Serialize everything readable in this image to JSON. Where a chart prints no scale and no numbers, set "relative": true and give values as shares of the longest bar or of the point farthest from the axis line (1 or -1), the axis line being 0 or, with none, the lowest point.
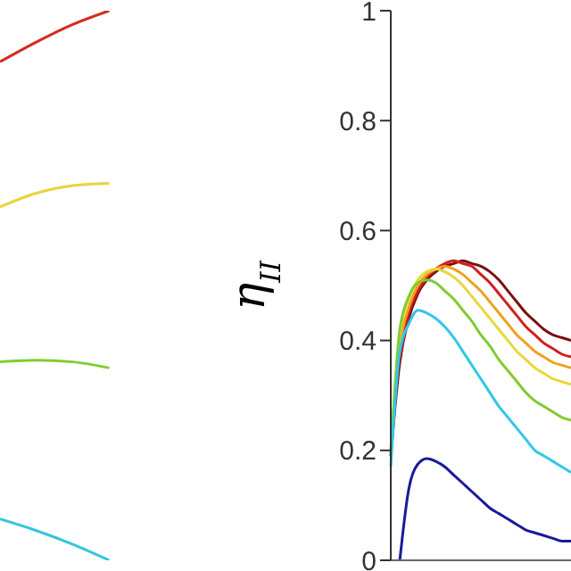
{
  "chart_data": [
    {
      "type": "line",
      "relative": true,
      "tick_labels": false,
      "grid": false,
      "legend": false,
      "marker": "none",
      "categories": [
        null,
        null,
        null,
        null,
        null,
        null
      ],
      "series": [
        {
          "color": "#d62a1e",
          "values": [
            0.907,
            0.943,
            0.975,
            1,
            null,
            null
          ]
        },
        {
          "color": "#e8d43a",
          "values": [
            0.643,
            0.668,
            0.682,
            0.686,
            null,
            null
          ]
        },
        {
          "color": "#7ccf2f",
          "values": [
            0.361,
            0.364,
            0.361,
            0.35,
            null,
            null
          ]
        },
        {
          "color": "#33c6e0",
          "values": [
            0.075,
            0.054,
            0.029,
            0,
            null,
            null
          ]
        }
      ]
    },
    {
      "type": "line",
      "ylabel": "η$_{II}$",
      "ylim": [
        0,
        1
      ],
      "yticks": [
        0,
        0.2,
        0.4,
        0.6,
        0.8,
        1
      ],
      "tick_labels": "y",
      "grid": false,
      "legend": false,
      "marker": "none",
      "categories": [
        null,
        null,
        null,
        null,
        null,
        null,
        null,
        null,
        null,
        null,
        null,
        null,
        null,
        null,
        null,
        null,
        null,
        null,
        null,
        null,
        null
      ],
      "series": [
        {
          "color": "#7a1010",
          "values": [
            0.19,
            0.36,
            0.44,
            0.485,
            0.51,
            0.525,
            0.535,
            0.54,
            0.545,
            0.54,
            0.535,
            0.525,
            0.51,
            0.49,
            0.47,
            0.45,
            0.435,
            0.42,
            0.41,
            0.405,
            0.4
          ]
        },
        {
          "color": "#d11f1f",
          "values": [
            null,
            0.37,
            0.45,
            0.49,
            0.515,
            0.53,
            0.54,
            0.545,
            0.54,
            0.535,
            0.52,
            0.505,
            0.485,
            0.465,
            0.445,
            0.425,
            0.41,
            0.395,
            0.385,
            0.375,
            0.37
          ]
        },
        {
          "color": "#f0a020",
          "values": [
            0.2,
            0.39,
            0.46,
            0.5,
            0.52,
            0.53,
            0.535,
            0.53,
            0.52,
            0.505,
            0.49,
            0.47,
            0.45,
            0.43,
            0.41,
            0.395,
            0.38,
            0.37,
            0.36,
            0.355,
            0.35
          ]
        },
        {
          "color": "#e8d83a",
          "values": [
            0.2,
            0.41,
            0.475,
            0.51,
            0.525,
            0.53,
            0.525,
            0.515,
            0.5,
            0.48,
            0.46,
            0.44,
            0.42,
            0.4,
            0.38,
            0.365,
            0.35,
            0.34,
            0.33,
            0.325,
            0.32
          ]
        },
        {
          "color": "#80cc30",
          "values": [
            0.19,
            0.42,
            0.48,
            0.505,
            0.51,
            0.505,
            0.49,
            0.475,
            0.455,
            0.435,
            0.41,
            0.39,
            0.365,
            0.345,
            0.325,
            0.305,
            0.29,
            0.28,
            0.27,
            0.26,
            0.255
          ]
        },
        {
          "color": "#30c8e8",
          "values": [
            0.17,
            0.38,
            0.43,
            0.455,
            0.45,
            0.44,
            0.425,
            0.405,
            0.38,
            0.355,
            0.33,
            0.305,
            0.28,
            0.26,
            0.24,
            0.22,
            0.2,
            0.19,
            0.18,
            0.17,
            0.16
          ]
        },
        {
          "color": "#1a1a9a",
          "values": [
            null,
            0,
            0.13,
            0.175,
            0.185,
            0.18,
            0.17,
            0.155,
            0.14,
            0.125,
            0.11,
            0.095,
            0.085,
            0.075,
            0.065,
            0.055,
            0.05,
            0.045,
            0.04,
            0.035,
            0.035
          ]
        }
      ]
    }
  ]
}
